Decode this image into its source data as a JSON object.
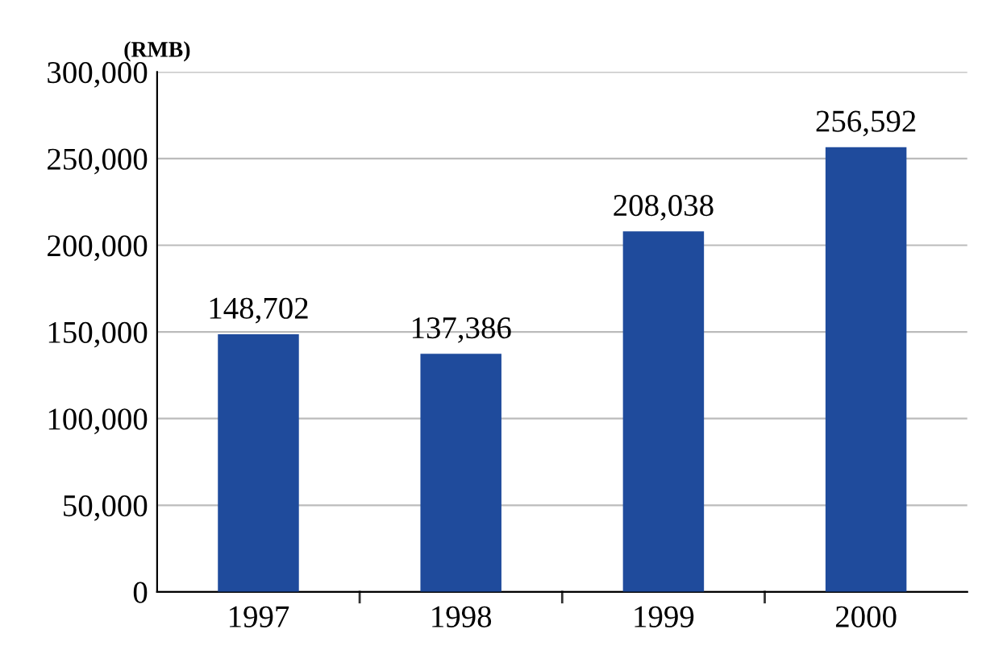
{
  "chart_data": {
    "type": "bar",
    "ylabel": "(RMB)",
    "categories": [
      "1997",
      "1998",
      "1999",
      "2000"
    ],
    "values": [
      148702,
      137386,
      208038,
      256592
    ],
    "color": "#1f4b9c",
    "ylim": [
      0,
      300000
    ],
    "yticks": [
      {
        "value": 0,
        "label": "0"
      },
      {
        "value": 50000,
        "label": "50,000"
      },
      {
        "value": 100000,
        "label": "100,000"
      },
      {
        "value": 150000,
        "label": "150,000"
      },
      {
        "value": 200000,
        "label": "200,000"
      },
      {
        "value": 250000,
        "label": "250,000"
      },
      {
        "value": 300000,
        "label": "300,000"
      }
    ],
    "value_labels": [
      "148,702",
      "137,386",
      "208,038",
      "256,592"
    ],
    "grid": "y"
  }
}
